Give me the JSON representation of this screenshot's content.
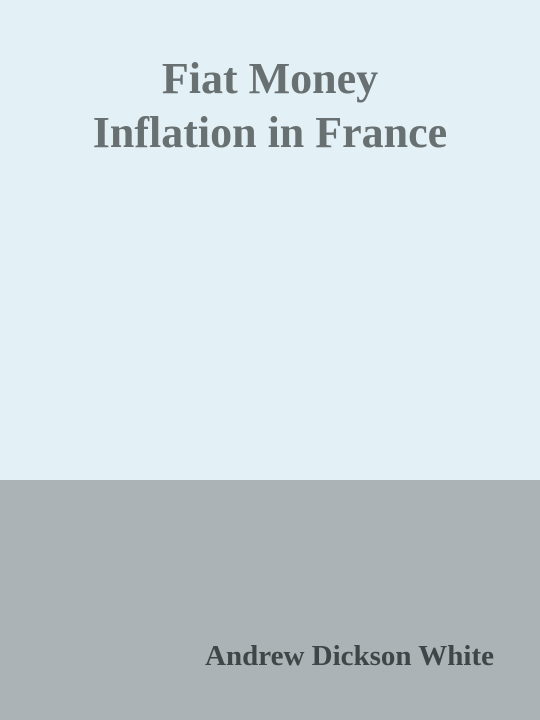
{
  "book": {
    "title_lines": [
      "Fiat Money",
      "Inflation in France"
    ],
    "author": "Andrew Dickson White"
  },
  "colors": {
    "top_background": "#e3f1f6",
    "bottom_background": "#abb3b6",
    "title_color": "#687071",
    "author_color": "#3f4647"
  }
}
